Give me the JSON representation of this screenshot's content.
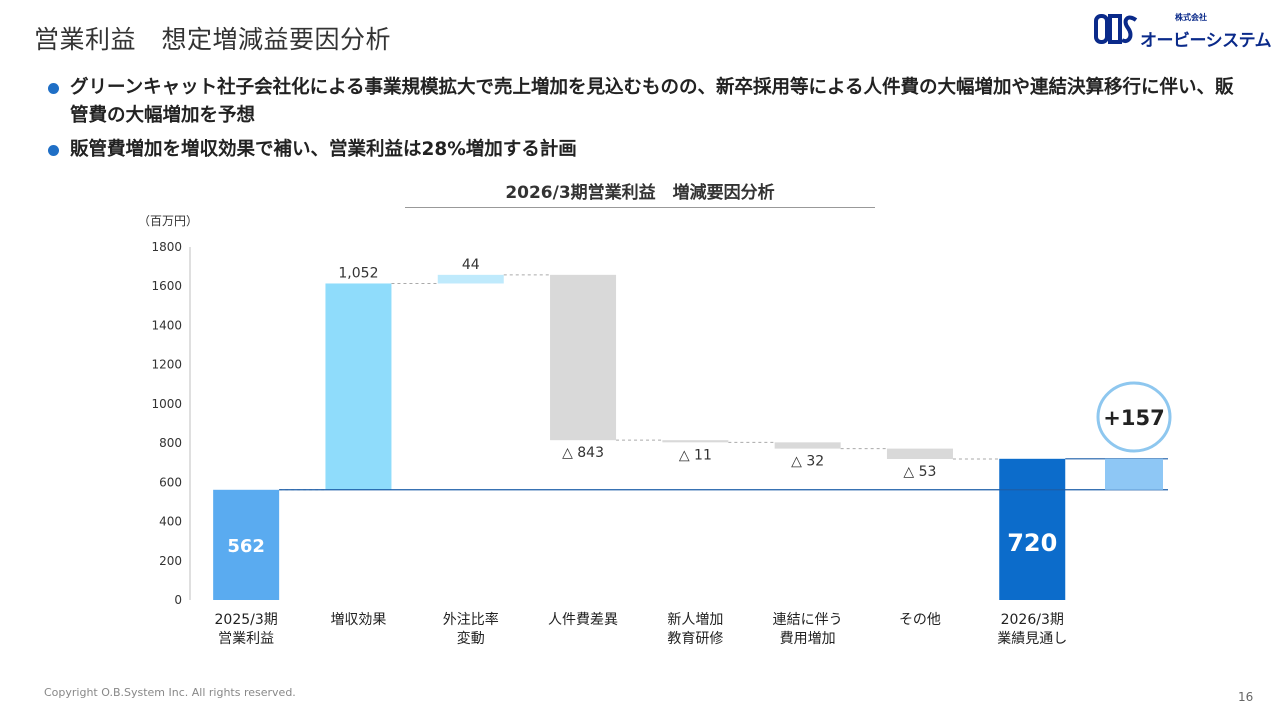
{
  "page": {
    "title": "営業利益　想定増減益要因分析",
    "logo_small": "株式会社",
    "logo_main": "オービーシステム",
    "bullets": [
      "グリーンキャット社子会社化による事業規模拡大で売上増加を見込むものの、新卒採用等による人件費の大幅増加や連結決算移行に伴い、販管費の大幅増加を予想",
      "販管費増加を増収効果で補い、営業利益は28%増加する計画"
    ],
    "copyright": "Copyright O.B.System Inc. All rights reserved.",
    "page_number": "16",
    "colors": {
      "accent": "#1f6fc6",
      "start_bar": "#5aabf0",
      "increase_bar": "#8fdcfb",
      "increase_bar_light": "#bfeafc",
      "decrease_bar": "#d9d9d9",
      "end_bar": "#0c6ccb",
      "delta_bar": "#8ec7f5",
      "circle": "#8ec7ef"
    }
  },
  "chart_data": {
    "type": "waterfall",
    "title": "2026/3期営業利益　増減要因分析",
    "unit_label": "（百万円）",
    "ylim": [
      0,
      1800
    ],
    "yticks": [
      0,
      200,
      400,
      600,
      800,
      1000,
      1200,
      1400,
      1600,
      1800
    ],
    "grid": false,
    "categories": [
      "2025/3期\n営業利益",
      "増収効果",
      "外注比率\n変動",
      "人件費差異",
      "新人増加\n教育研修",
      "連結に伴う\n費用増加",
      "その他",
      "2026/3期\n業績見通し"
    ],
    "bars": [
      {
        "kind": "total",
        "value": 562,
        "label": "562"
      },
      {
        "kind": "increase",
        "value": 1052,
        "label": "1,052"
      },
      {
        "kind": "increase",
        "value": 44,
        "label": "44"
      },
      {
        "kind": "decrease",
        "value": -843,
        "label": "△ 843"
      },
      {
        "kind": "decrease",
        "value": -11,
        "label": "△ 11"
      },
      {
        "kind": "decrease",
        "value": -32,
        "label": "△ 32"
      },
      {
        "kind": "decrease",
        "value": -53,
        "label": "△ 53"
      },
      {
        "kind": "total",
        "value": 720,
        "label": "720"
      }
    ],
    "delta": {
      "from": 562,
      "to": 720,
      "label": "+157"
    }
  }
}
